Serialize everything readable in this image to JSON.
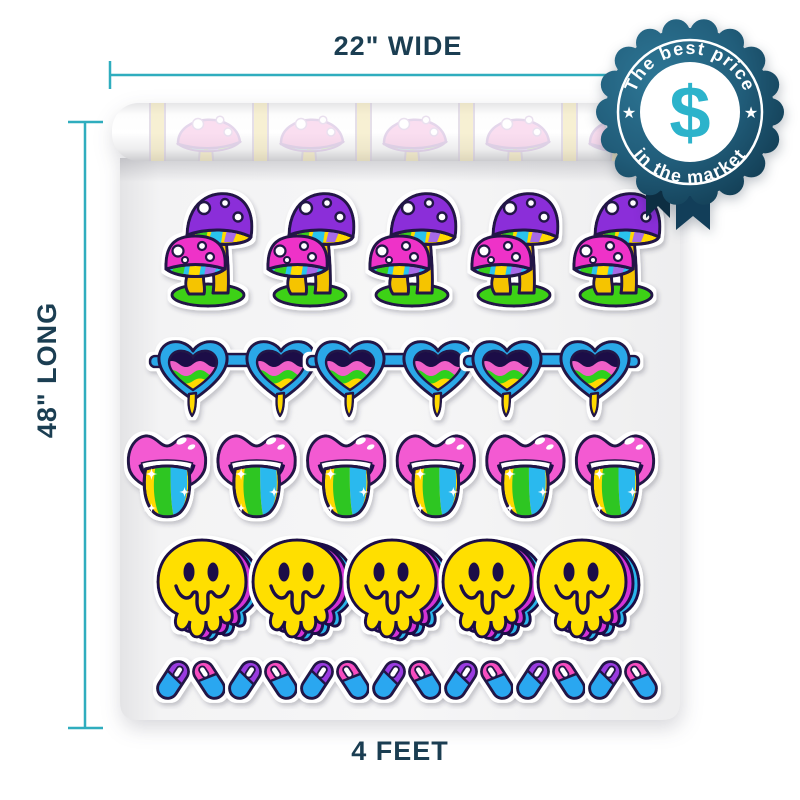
{
  "title": "Sticker wallpaper roll size visualization",
  "dimensions": {
    "width_label": "22\" WIDE",
    "length_label": "48\" LONG",
    "feet_label": "4 FEET"
  },
  "badge": {
    "arc_top": "The best price",
    "arc_bottom": "in the market",
    "currency_symbol": "$",
    "star": "★"
  },
  "sheet": {
    "rows": [
      {
        "type": "mushroom-pair",
        "count": 5
      },
      {
        "type": "heart-sunglasses",
        "count": 3
      },
      {
        "type": "rainbow-lips",
        "count": 6
      },
      {
        "type": "melting-smiley",
        "count": 5
      },
      {
        "type": "pill-pair",
        "count": 7
      }
    ]
  },
  "roll": {
    "pattern": "faded-mushroom",
    "count": 5
  },
  "colors": {
    "dimension_line": "#2fadbe",
    "label_ink": "#1b3e52",
    "badge_base": "#1d5a75",
    "badge_symbol": "#2cb3cb",
    "ribbon": "#0d2e42",
    "outline_ink": "#241447",
    "sticker_palette": [
      "#8b2fd9",
      "#ee30c8",
      "#f5c400",
      "#3ed112",
      "#29a8e8",
      "#ffd900",
      "#2fd01c",
      "#29b9ee",
      "#ffdf00",
      "#d433d6",
      "#29b4ea",
      "#9a3ae0",
      "#f74ec0"
    ]
  }
}
